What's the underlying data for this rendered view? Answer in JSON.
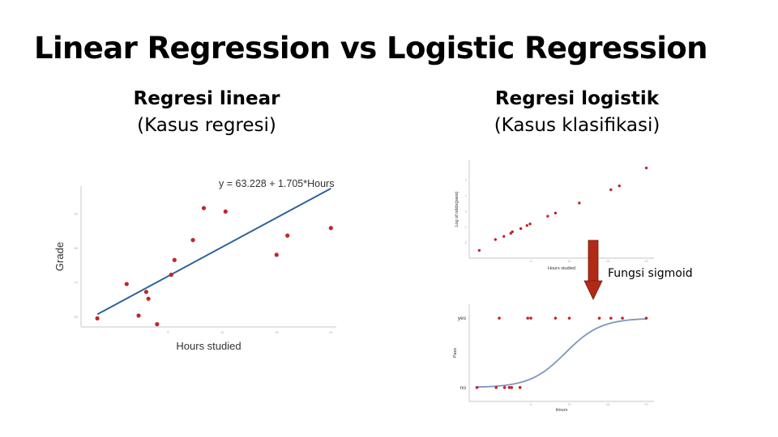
{
  "slide": {
    "title": "Linear Regression vs Logistic Regression",
    "left_heading": "Regresi linear",
    "left_subheading": "(Kasus regresi)",
    "right_heading": "Regresi logistik",
    "right_subheading": "(Kasus klasifikasi)",
    "arrow_label": "Fungsi sigmoid",
    "arrow_color": "#b22a16"
  },
  "chart_data": [
    {
      "type": "scatter",
      "title": "",
      "equation": "y = 63.228 + 1.705*Hours",
      "xlabel": "Hours studied",
      "ylabel": "Grade",
      "xlim": [
        -3,
        20.5
      ],
      "ylim": [
        57,
        98
      ],
      "xticks": [
        0,
        5,
        10,
        15,
        20
      ],
      "xtick_labels": [
        "",
        "5",
        "10",
        "15",
        "20"
      ],
      "yticks": [
        60,
        70,
        80,
        90
      ],
      "ytick_labels": [
        "60",
        "70",
        "80",
        "90"
      ],
      "point_color": "#c0262a",
      "line_color": "#2e6499",
      "regression_line": {
        "intercept": 63.228,
        "slope": 1.705,
        "x_range": [
          -1.5,
          20
        ]
      },
      "points": [
        {
          "x": -1.5,
          "y": 59.5
        },
        {
          "x": 1.2,
          "y": 69.5
        },
        {
          "x": 2.3,
          "y": 60.3
        },
        {
          "x": 3.0,
          "y": 67.2
        },
        {
          "x": 3.2,
          "y": 65.2
        },
        {
          "x": 4.0,
          "y": 57.8
        },
        {
          "x": 5.3,
          "y": 72.2
        },
        {
          "x": 5.6,
          "y": 76.5
        },
        {
          "x": 7.3,
          "y": 82.3
        },
        {
          "x": 8.3,
          "y": 91.6
        },
        {
          "x": 10.3,
          "y": 90.6
        },
        {
          "x": 15.0,
          "y": 78.0
        },
        {
          "x": 16.0,
          "y": 83.6
        },
        {
          "x": 20.0,
          "y": 85.8
        }
      ]
    },
    {
      "type": "scatter",
      "title": "",
      "xlabel": "Hours studied",
      "ylabel": "Log of odds(pass)",
      "xlim": [
        -3,
        21
      ],
      "ylim": [
        -3,
        3.3
      ],
      "xticks": [
        0,
        5,
        10,
        15,
        20
      ],
      "xtick_labels": [
        "",
        "5",
        "10",
        "15",
        "20"
      ],
      "yticks": [
        -2,
        -1,
        0,
        1,
        2
      ],
      "ytick_labels": [
        "-2",
        "-1",
        "0",
        "1",
        "2"
      ],
      "point_color": "#c0262a",
      "points": [
        {
          "x": -1.7,
          "y": -2.5
        },
        {
          "x": 0.4,
          "y": -1.8
        },
        {
          "x": 1.5,
          "y": -1.6
        },
        {
          "x": 2.4,
          "y": -1.4
        },
        {
          "x": 2.6,
          "y": -1.3
        },
        {
          "x": 3.7,
          "y": -1.1
        },
        {
          "x": 4.5,
          "y": -0.9
        },
        {
          "x": 4.9,
          "y": -0.8
        },
        {
          "x": 7.2,
          "y": -0.3
        },
        {
          "x": 8.2,
          "y": -0.1
        },
        {
          "x": 11.3,
          "y": 0.55
        },
        {
          "x": 15.4,
          "y": 1.4
        },
        {
          "x": 16.5,
          "y": 1.65
        },
        {
          "x": 20.0,
          "y": 2.8
        }
      ]
    },
    {
      "type": "scatter",
      "title": "",
      "xlabel": "Hours",
      "ylabel": "Pass",
      "xlim": [
        -3,
        21
      ],
      "ylim": [
        -0.2,
        1.2
      ],
      "ytick_labels": [
        "no",
        "yes"
      ],
      "xticks": [
        0,
        5,
        10,
        15,
        20
      ],
      "xtick_labels": [
        "",
        "5",
        "10",
        "15",
        "20"
      ],
      "point_color": "#c0262a",
      "curve_color": "#7d97bd",
      "sigmoid": {
        "x_range": [
          -2,
          20
        ],
        "center": 9.5,
        "scale": 2.3
      },
      "points": [
        {
          "x": -2.0,
          "y": 0
        },
        {
          "x": 0.5,
          "y": 0
        },
        {
          "x": 1.6,
          "y": 0
        },
        {
          "x": 2.2,
          "y": 0
        },
        {
          "x": 2.5,
          "y": 0
        },
        {
          "x": 3.6,
          "y": 0
        },
        {
          "x": 0.9,
          "y": 1
        },
        {
          "x": 4.6,
          "y": 1
        },
        {
          "x": 5.0,
          "y": 1
        },
        {
          "x": 8.2,
          "y": 1
        },
        {
          "x": 10.0,
          "y": 1
        },
        {
          "x": 13.9,
          "y": 1
        },
        {
          "x": 15.4,
          "y": 1
        },
        {
          "x": 16.9,
          "y": 1
        },
        {
          "x": 20.0,
          "y": 1
        }
      ]
    }
  ]
}
